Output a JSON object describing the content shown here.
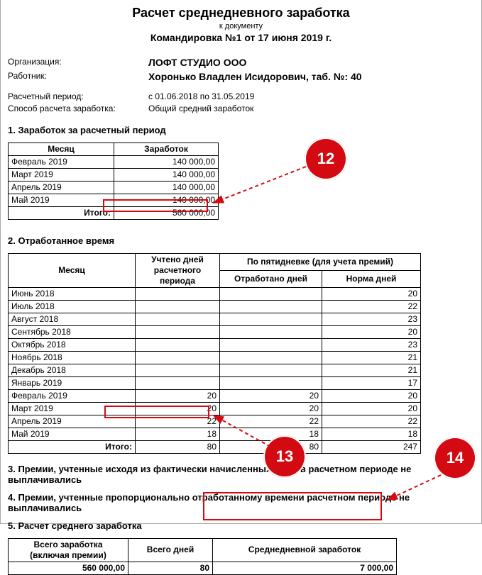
{
  "header": {
    "title": "Расчет среднедневного заработка",
    "subtitle_small": "к документу",
    "subtitle_bold": "Командировка №1 от 17 июня 2019 г."
  },
  "info": {
    "org_label": "Организация:",
    "org_value": "ЛОФТ СТУДИО ООО",
    "emp_label": "Работник:",
    "emp_value": "Хоронько Владлен Исидорович, таб. №: 40",
    "period_label": "Расчетный период:",
    "period_value": "с 01.06.2018 по 31.05.2019",
    "method_label": "Способ расчета заработка:",
    "method_value": "Общий средний заработок"
  },
  "s1": {
    "title": "1. Заработок за расчетный период",
    "col_month": "Месяц",
    "col_earn": "Заработок",
    "rows": [
      {
        "m": "Февраль 2019",
        "v": "140 000,00"
      },
      {
        "m": "Март 2019",
        "v": "140 000,00"
      },
      {
        "m": "Апрель 2019",
        "v": "140 000,00"
      },
      {
        "m": "Май 2019",
        "v": "140 000,00"
      }
    ],
    "total_label": "Итого:",
    "total_value": "560 000,00"
  },
  "s2": {
    "title": "2. Отработанное время",
    "col_month": "Месяц",
    "col_days": "Учтено дней расчетного периода",
    "col_group": "По пятидневке (для учета премий)",
    "col_worked": "Отработано дней",
    "col_norm": "Норма дней",
    "rows": [
      {
        "m": "Июнь 2018",
        "d": "",
        "w": "",
        "n": "20"
      },
      {
        "m": "Июль 2018",
        "d": "",
        "w": "",
        "n": "22"
      },
      {
        "m": "Август 2018",
        "d": "",
        "w": "",
        "n": "23"
      },
      {
        "m": "Сентябрь 2018",
        "d": "",
        "w": "",
        "n": "20"
      },
      {
        "m": "Октябрь 2018",
        "d": "",
        "w": "",
        "n": "23"
      },
      {
        "m": "Ноябрь 2018",
        "d": "",
        "w": "",
        "n": "21"
      },
      {
        "m": "Декабрь 2018",
        "d": "",
        "w": "",
        "n": "21"
      },
      {
        "m": "Январь 2019",
        "d": "",
        "w": "",
        "n": "17"
      },
      {
        "m": "Февраль 2019",
        "d": "20",
        "w": "20",
        "n": "20"
      },
      {
        "m": "Март 2019",
        "d": "20",
        "w": "20",
        "n": "20"
      },
      {
        "m": "Апрель 2019",
        "d": "22",
        "w": "22",
        "n": "22"
      },
      {
        "m": "Май 2019",
        "d": "18",
        "w": "18",
        "n": "18"
      }
    ],
    "total_label": "Итого:",
    "total_d": "80",
    "total_w": "80",
    "total_n": "247"
  },
  "s3": {
    "title": "3. Премии, учтенные исходя из фактически начисленных сумм в расчетном периоде не выплачивались"
  },
  "s4": {
    "title": "4. Премии, учтенные пропорционально отработанному времени расчетном периоде не выплачивались"
  },
  "s5": {
    "title": "5. Расчет среднего  заработка",
    "c1a": "Всего заработка",
    "c1b": "(включая премии)",
    "c2": "Всего дней",
    "c3": "Среднедневной заработок",
    "v1": "560 000,00",
    "v2": "80",
    "v3": "7 000,00"
  },
  "badges": {
    "b12": "12",
    "b13": "13",
    "b14": "14"
  },
  "colors": {
    "accent": "#d40a12"
  }
}
